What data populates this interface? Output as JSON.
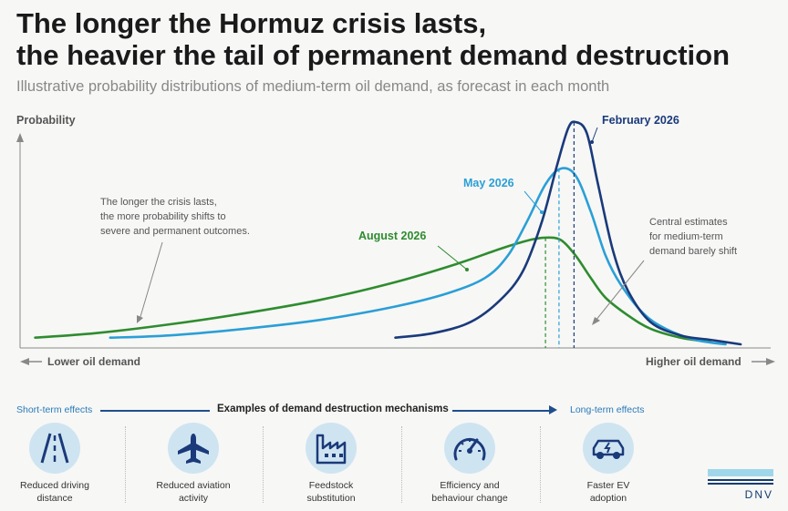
{
  "title_line1": "The longer the Hormuz crisis lasts,",
  "title_line2": "the heavier the tail of permanent demand destruction",
  "subtitle": "Illustrative probability distributions of medium-term oil demand, as forecast in each month",
  "chart_data": {
    "type": "line",
    "ylabel": "Probability",
    "x_left_label": "Lower oil demand",
    "x_right_label": "Higher oil demand",
    "grid": false,
    "xlim": [
      0,
      100
    ],
    "ylim": [
      0,
      1
    ],
    "series": [
      {
        "name": "February 2026",
        "color": "#1a3a7a",
        "peak_x": 73.8,
        "peak_y": 1.0,
        "x_start": 50,
        "points": [
          [
            50,
            0.03
          ],
          [
            55,
            0.05
          ],
          [
            60,
            0.1
          ],
          [
            64,
            0.2
          ],
          [
            67,
            0.33
          ],
          [
            69.5,
            0.55
          ],
          [
            71.5,
            0.8
          ],
          [
            73,
            0.97
          ],
          [
            74,
            1.0
          ],
          [
            75.5,
            0.95
          ],
          [
            77,
            0.72
          ],
          [
            79,
            0.42
          ],
          [
            81,
            0.24
          ],
          [
            84,
            0.1
          ],
          [
            88,
            0.04
          ],
          [
            92,
            0.02
          ],
          [
            96,
            0.0
          ]
        ]
      },
      {
        "name": "May 2026",
        "color": "#2a9fd6",
        "peak_x": 71.8,
        "peak_y": 0.79,
        "x_start": 12,
        "points": [
          [
            12,
            0.03
          ],
          [
            20,
            0.04
          ],
          [
            30,
            0.07
          ],
          [
            40,
            0.11
          ],
          [
            50,
            0.17
          ],
          [
            57,
            0.23
          ],
          [
            62,
            0.3
          ],
          [
            65,
            0.4
          ],
          [
            67.5,
            0.55
          ],
          [
            70,
            0.72
          ],
          [
            72,
            0.79
          ],
          [
            74,
            0.76
          ],
          [
            76,
            0.6
          ],
          [
            78,
            0.4
          ],
          [
            80,
            0.27
          ],
          [
            83,
            0.14
          ],
          [
            86,
            0.07
          ],
          [
            90,
            0.02
          ],
          [
            94,
            0.0
          ]
        ]
      },
      {
        "name": "August 2026",
        "color": "#2e8c2e",
        "peak_x": 70,
        "peak_y": 0.48,
        "x_start": 2,
        "points": [
          [
            2,
            0.03
          ],
          [
            10,
            0.05
          ],
          [
            20,
            0.09
          ],
          [
            30,
            0.14
          ],
          [
            40,
            0.2
          ],
          [
            50,
            0.28
          ],
          [
            58,
            0.36
          ],
          [
            64,
            0.43
          ],
          [
            68,
            0.47
          ],
          [
            70,
            0.48
          ],
          [
            72,
            0.47
          ],
          [
            74,
            0.4
          ],
          [
            76,
            0.3
          ],
          [
            78,
            0.21
          ],
          [
            81,
            0.13
          ],
          [
            84,
            0.07
          ],
          [
            88,
            0.03
          ],
          [
            92,
            0.01
          ]
        ]
      }
    ],
    "annotations": [
      "The longer the crisis lasts, the more probability shifts to severe and permanent outcomes.",
      "Central estimates for medium-term demand barely shift"
    ]
  },
  "mechanisms": {
    "left_label": "Short-term effects",
    "title": "Examples of demand destruction mechanisms",
    "right_label": "Long-term effects",
    "items": [
      {
        "icon": "road-icon",
        "line1": "Reduced driving",
        "line2": "distance"
      },
      {
        "icon": "airplane-icon",
        "line1": "Reduced aviation",
        "line2": "activity"
      },
      {
        "icon": "factory-icon",
        "line1": "Feedstock",
        "line2": "substitution"
      },
      {
        "icon": "gauge-icon",
        "line1": "Efficiency and",
        "line2": "behaviour change"
      },
      {
        "icon": "electric-car-icon",
        "line1": "Faster EV",
        "line2": "adoption"
      }
    ]
  },
  "logo_text": "DNV"
}
